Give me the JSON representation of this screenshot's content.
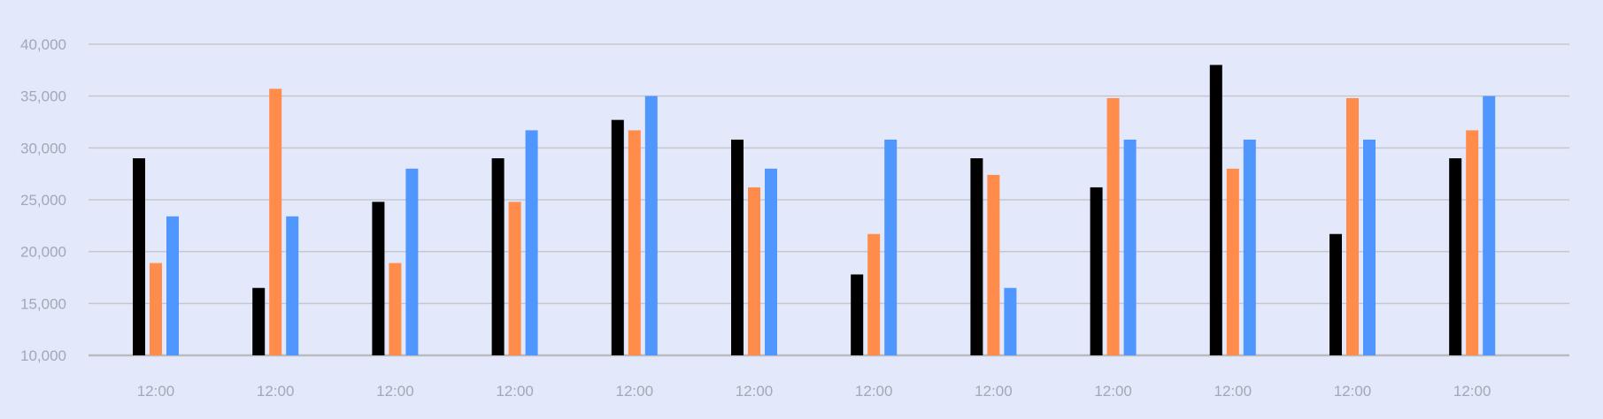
{
  "chart_data": {
    "type": "bar",
    "categories": [
      "12:00",
      "12:00",
      "12:00",
      "12:00",
      "12:00",
      "12:00",
      "12:00",
      "12:00",
      "12:00",
      "12:00",
      "12:00",
      "12:00"
    ],
    "ylim": [
      10000,
      40000
    ],
    "yticks": [
      10000,
      15000,
      20000,
      25000,
      30000,
      35000,
      40000
    ],
    "ytick_labels": [
      "10,000",
      "15,000",
      "20,000",
      "25,000",
      "30,000",
      "35,000",
      "40,000"
    ],
    "grid": true,
    "legend": "none",
    "series": [
      {
        "color": "#000000",
        "values": [
          29000,
          16500,
          24800,
          29000,
          32700,
          30800,
          17800,
          29000,
          26200,
          38000,
          21700,
          29000
        ]
      },
      {
        "color": "#ff8c4b",
        "values": [
          18900,
          35700,
          18900,
          24800,
          31700,
          26200,
          21700,
          27400,
          34800,
          28000,
          34800,
          31700
        ]
      },
      {
        "color": "#4f97ff",
        "values": [
          23400,
          23400,
          28000,
          31700,
          35000,
          28000,
          30800,
          16500,
          30800,
          30800,
          30800,
          35000
        ]
      }
    ]
  }
}
